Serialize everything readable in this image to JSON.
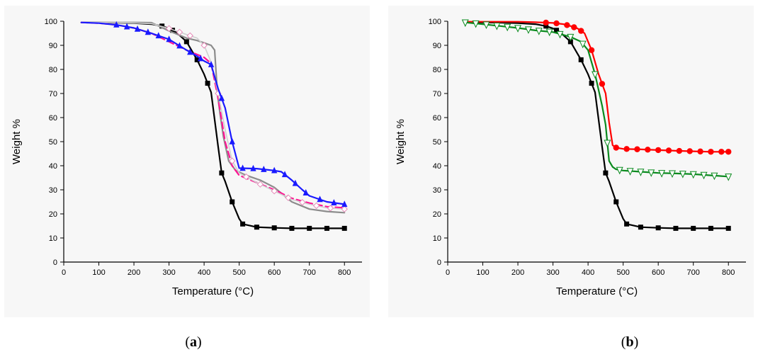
{
  "captions": {
    "a": {
      "open": "(",
      "letter": "a",
      "close": ")"
    },
    "b": {
      "open": "(",
      "letter": "b",
      "close": ")"
    }
  },
  "chart_data": [
    {
      "type": "line",
      "panel": "a",
      "xlabel": "Temperature (°C)",
      "ylabel": "Weight %",
      "xlim": [
        0,
        850
      ],
      "ylim": [
        0,
        100
      ],
      "xticks": [
        0,
        100,
        200,
        300,
        400,
        500,
        600,
        700,
        800
      ],
      "yticks": [
        0,
        10,
        20,
        30,
        40,
        50,
        60,
        70,
        80,
        90,
        100
      ],
      "grid": false,
      "legend": "none",
      "series": [
        {
          "color": "#000000",
          "marker": "square",
          "dash": "solid",
          "x": [
            50,
            100,
            150,
            200,
            250,
            280,
            300,
            320,
            350,
            380,
            400,
            420,
            440,
            450,
            460,
            480,
            500,
            510,
            550,
            600,
            650,
            700,
            750,
            800
          ],
          "y": [
            99.5,
            99.5,
            99.4,
            99.2,
            98.8,
            98.0,
            97.0,
            95.5,
            91.5,
            84.0,
            78.0,
            70.5,
            48.0,
            37.0,
            33.5,
            25.0,
            18.0,
            15.8,
            14.5,
            14.2,
            14.0,
            14.0,
            14.0,
            14.0
          ],
          "marker_x": [
            280,
            310,
            350,
            380,
            410,
            450,
            480,
            510,
            550,
            600,
            650,
            700,
            750,
            800
          ]
        },
        {
          "color": "#8c8c8c",
          "marker": "none",
          "dash": "solid",
          "x": [
            50,
            100,
            150,
            200,
            250,
            300,
            350,
            380,
            400,
            420,
            430,
            438,
            445,
            455,
            470,
            490,
            520,
            560,
            600,
            650,
            700,
            750,
            800
          ],
          "y": [
            99.5,
            99.5,
            99.5,
            99.5,
            99.4,
            96.0,
            93.0,
            92.0,
            91.0,
            90.0,
            88.0,
            70.0,
            62.0,
            52.0,
            42.0,
            38.0,
            36.0,
            34.0,
            31.0,
            25.0,
            22.0,
            21.0,
            20.5
          ],
          "marker_x": []
        },
        {
          "color": "#ff1493",
          "marker": "none",
          "dash": "dashed",
          "x": [
            50,
            100,
            150,
            200,
            250,
            300,
            350,
            400,
            420,
            440,
            460,
            480,
            500,
            550,
            600,
            650,
            700,
            750,
            800
          ],
          "y": [
            99.5,
            99.2,
            98.5,
            97.2,
            95.0,
            91.5,
            88.0,
            85.0,
            82.5,
            68.0,
            50.0,
            40.0,
            36.0,
            33.0,
            30.0,
            26.5,
            24.5,
            23.0,
            22.5
          ],
          "marker_x": []
        },
        {
          "color": "#cfcfcf",
          "marker": "diamond-open",
          "dash": "solid",
          "x": [
            50,
            100,
            150,
            200,
            250,
            300,
            350,
            380,
            400,
            420,
            440,
            460,
            480,
            500,
            550,
            600,
            650,
            700,
            750,
            800
          ],
          "y": [
            99.5,
            99.5,
            99.5,
            99.3,
            99.0,
            97.0,
            94.5,
            93.0,
            90.0,
            83.0,
            70.0,
            55.0,
            42.0,
            37.0,
            33.0,
            29.5,
            26.0,
            24.0,
            22.5,
            22.0
          ],
          "marker_x": [
            300,
            330,
            360,
            400,
            440,
            480,
            520,
            560,
            600,
            640,
            680,
            720,
            760,
            800
          ]
        },
        {
          "color": "#1a1aff",
          "marker": "triangle",
          "dash": "solid",
          "x": [
            50,
            100,
            150,
            200,
            250,
            300,
            350,
            380,
            400,
            420,
            440,
            460,
            480,
            500,
            550,
            600,
            620,
            650,
            680,
            700,
            750,
            800
          ],
          "y": [
            99.5,
            99.2,
            98.5,
            97.2,
            95.0,
            92.5,
            88.0,
            85.5,
            83.5,
            82.0,
            72.0,
            64.0,
            50.0,
            39.0,
            38.8,
            38.0,
            37.5,
            34.0,
            30.0,
            27.5,
            25.0,
            24.0
          ],
          "marker_x": [
            150,
            180,
            210,
            240,
            270,
            300,
            330,
            360,
            390,
            420,
            450,
            480,
            510,
            540,
            570,
            600,
            630,
            660,
            690,
            730,
            770,
            800
          ]
        }
      ]
    },
    {
      "type": "line",
      "panel": "b",
      "xlabel": "Temperature (°C)",
      "ylabel": "Weight %",
      "xlim": [
        0,
        850
      ],
      "ylim": [
        0,
        100
      ],
      "xticks": [
        0,
        100,
        200,
        300,
        400,
        500,
        600,
        700,
        800
      ],
      "yticks": [
        0,
        10,
        20,
        30,
        40,
        50,
        60,
        70,
        80,
        90,
        100
      ],
      "grid": false,
      "legend": "none",
      "series": [
        {
          "color": "#000000",
          "marker": "square",
          "dash": "solid",
          "x": [
            50,
            100,
            150,
            200,
            250,
            280,
            300,
            320,
            350,
            380,
            400,
            420,
            440,
            450,
            460,
            480,
            500,
            510,
            550,
            600,
            650,
            700,
            750,
            800
          ],
          "y": [
            99.5,
            99.5,
            99.4,
            99.2,
            98.8,
            98.0,
            97.0,
            95.5,
            91.5,
            84.0,
            78.0,
            70.5,
            48.0,
            37.0,
            33.5,
            25.0,
            18.0,
            15.8,
            14.5,
            14.2,
            14.0,
            14.0,
            14.0,
            14.0
          ],
          "marker_x": [
            280,
            310,
            350,
            380,
            410,
            450,
            480,
            510,
            550,
            600,
            650,
            700,
            750,
            800
          ]
        },
        {
          "color": "#ff0000",
          "marker": "circle",
          "dash": "solid",
          "x": [
            50,
            100,
            150,
            200,
            250,
            300,
            330,
            350,
            370,
            390,
            410,
            430,
            450,
            460,
            470,
            480,
            500,
            550,
            600,
            650,
            700,
            750,
            800
          ],
          "y": [
            99.8,
            99.8,
            99.8,
            99.8,
            99.6,
            99.3,
            98.8,
            98.0,
            97.0,
            95.0,
            88.0,
            78.0,
            70.0,
            58.0,
            48.5,
            47.5,
            47.0,
            46.8,
            46.5,
            46.2,
            46.0,
            45.8,
            45.8
          ],
          "marker_x": [
            280,
            310,
            340,
            360,
            380,
            410,
            440,
            480,
            510,
            540,
            570,
            600,
            630,
            660,
            690,
            720,
            750,
            780,
            800
          ]
        },
        {
          "color": "#0a8a1e",
          "marker": "triangle-down-open",
          "dash": "solid",
          "x": [
            50,
            100,
            150,
            200,
            250,
            300,
            350,
            380,
            400,
            420,
            440,
            450,
            460,
            470,
            480,
            500,
            550,
            600,
            650,
            700,
            750,
            800
          ],
          "y": [
            99.5,
            98.8,
            98.0,
            97.2,
            96.2,
            95.5,
            93.5,
            91.5,
            88.0,
            78.0,
            65.0,
            57.0,
            42.0,
            39.5,
            38.5,
            38.0,
            37.5,
            37.0,
            36.8,
            36.5,
            36.0,
            35.5
          ],
          "marker_x": [
            50,
            80,
            110,
            140,
            170,
            200,
            230,
            260,
            290,
            320,
            350,
            385,
            420,
            455,
            490,
            520,
            550,
            580,
            610,
            640,
            670,
            700,
            730,
            760,
            800
          ]
        }
      ]
    }
  ]
}
